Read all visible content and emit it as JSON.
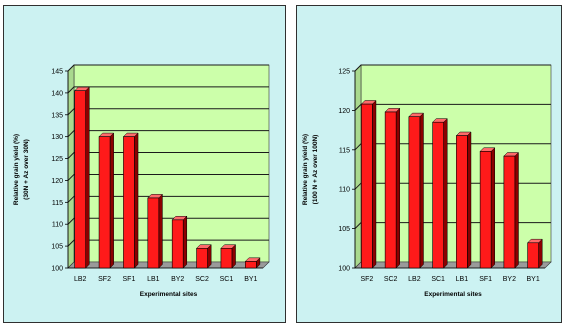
{
  "colors": {
    "panel_bg": "#ccf2f2",
    "plot_bg": "#ccffaa",
    "bar_front": "#ff1a1a",
    "bar_side": "#8b0000",
    "bar_top": "#ff6a6a",
    "gridline": "#1a1a1a",
    "floor": "#9a9a9a"
  },
  "chart_data": [
    {
      "type": "bar",
      "style": "3d",
      "ylabel": "Relative grain yield (%)",
      "ylabel2": "(30N + Az over 30N)",
      "xlabel": "Experimental sites",
      "categories": [
        "LB2",
        "SF2",
        "SF1",
        "LB1",
        "BY2",
        "SC2",
        "SC1",
        "BY1"
      ],
      "values": [
        140.5,
        130,
        130,
        116,
        111,
        104.5,
        104.5,
        101.5
      ],
      "ylim": [
        100,
        145
      ],
      "yticks": [
        100,
        105,
        110,
        115,
        120,
        125,
        130,
        135,
        140,
        145
      ],
      "grid": true,
      "legend": "none"
    },
    {
      "type": "bar",
      "style": "3d",
      "ylabel": "Relative grain yield (%)",
      "ylabel2": "(100 N + Az over 100N)",
      "xlabel": "Experimental sites",
      "categories": [
        "SF2",
        "SC2",
        "LB2",
        "SC1",
        "LB1",
        "SF1",
        "BY2",
        "BY1"
      ],
      "values": [
        120.8,
        119.8,
        119.2,
        118.5,
        116.8,
        114.8,
        114.2,
        103.2
      ],
      "ylim": [
        100,
        125
      ],
      "yticks": [
        100,
        105,
        110,
        115,
        120,
        125
      ],
      "grid": true,
      "legend": "none"
    }
  ]
}
